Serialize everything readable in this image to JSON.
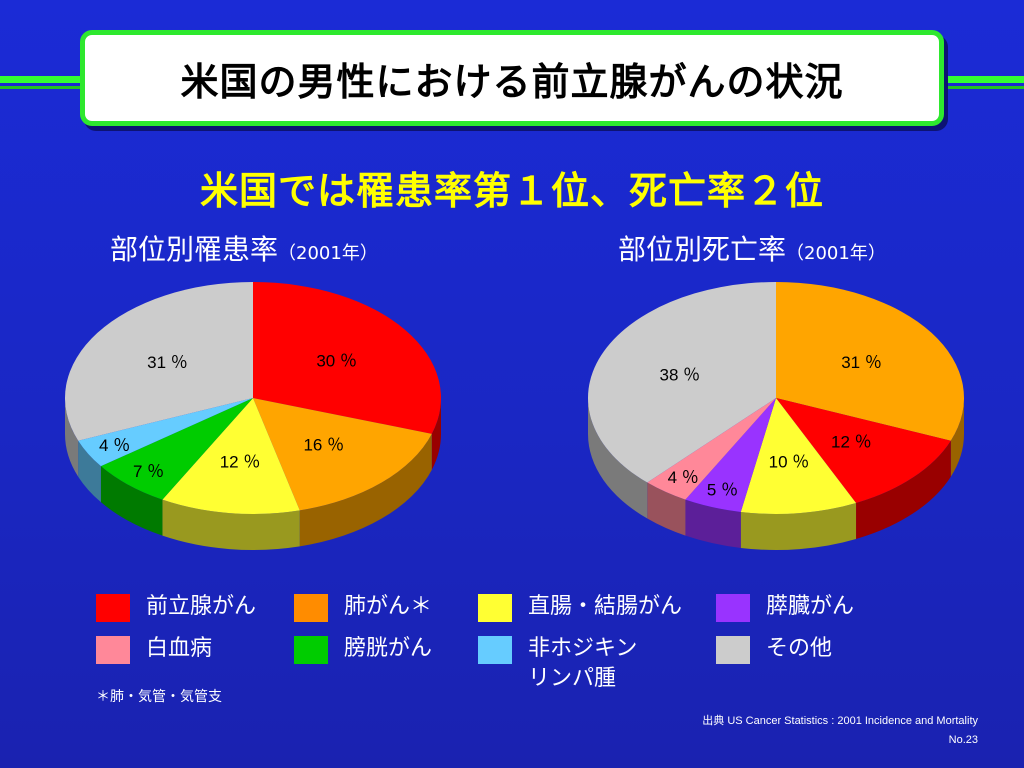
{
  "header": {
    "title": "米国の男性における前立腺がんの状況",
    "subtitle": "米国では罹患率第１位、死亡率２位"
  },
  "chart_data": [
    {
      "type": "pie",
      "title": "部位別罹患率",
      "title_note": "（2001年）",
      "unit": "％",
      "slices": [
        {
          "label": "前立腺がん",
          "value": 30,
          "color": "#ff0000"
        },
        {
          "label": "肺がん＊",
          "value": 16,
          "color": "#ffa500"
        },
        {
          "label": "直腸・結腸がん",
          "value": 12,
          "color": "#ffff33"
        },
        {
          "label": "膀胱がん",
          "value": 7,
          "color": "#00cc00"
        },
        {
          "label": "非ホジキンリンパ腫",
          "value": 4,
          "color": "#66ccff"
        },
        {
          "label": "その他",
          "value": 31,
          "color": "#cccccc"
        }
      ]
    },
    {
      "type": "pie",
      "title": "部位別死亡率",
      "title_note": "（2001年）",
      "unit": "％",
      "slices": [
        {
          "label": "肺がん＊",
          "value": 31,
          "color": "#ffa500"
        },
        {
          "label": "前立腺がん",
          "value": 12,
          "color": "#ff0000"
        },
        {
          "label": "直腸・結腸がん",
          "value": 10,
          "color": "#ffff33"
        },
        {
          "label": "膵臓がん",
          "value": 5,
          "color": "#9933ff"
        },
        {
          "label": "白血病",
          "value": 4,
          "color": "#ff8899"
        },
        {
          "label": "その他",
          "value": 38,
          "color": "#cccccc"
        }
      ]
    }
  ],
  "legend": {
    "items": [
      {
        "label": "前立腺がん",
        "color": "#ff0000"
      },
      {
        "label": "肺がん＊",
        "color": "#ff8c00"
      },
      {
        "label": "直腸・結腸がん",
        "color": "#ffff33"
      },
      {
        "label": "膵臓がん",
        "color": "#9933ff"
      },
      {
        "label": "白血病",
        "color": "#ff8899"
      },
      {
        "label": "膀胱がん",
        "color": "#00cc00"
      },
      {
        "label": "非ホジキン\nリンパ腫",
        "color": "#66ccff"
      },
      {
        "label": "その他",
        "color": "#cccccc"
      }
    ]
  },
  "footnote": "＊肺・気管・気管支",
  "source": "出典  US Cancer Statistics : 2001 Incidence and Mortality",
  "page_number": "No.23"
}
